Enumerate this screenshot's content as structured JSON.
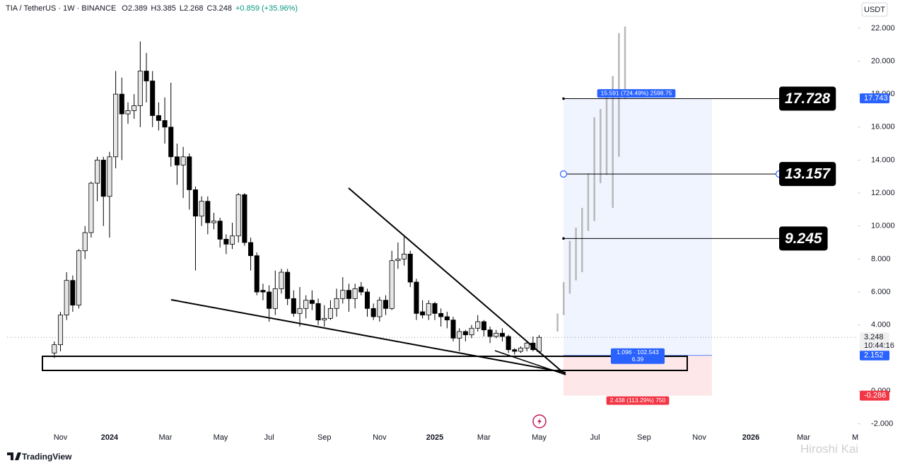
{
  "chart_data": {
    "type": "candlestick",
    "header": [
      "TIA / TetherUS · 1W · BINANCE",
      "O2.389",
      "H3.385",
      "L2.268",
      "C3.248",
      "+0.859 (+35.96%)"
    ],
    "currency": "USDT",
    "open": [
      2.3,
      2.8,
      4.6,
      6.7,
      5.2,
      8.5,
      9.6,
      12.6,
      14.0,
      11.8,
      14.2,
      18.0,
      16.8,
      17.0,
      17.3,
      19.4,
      18.8,
      16.7,
      16.4,
      16.0,
      14.2,
      13.7,
      14.2,
      12.2,
      10.6,
      11.5,
      10.2,
      10.3,
      9.2,
      8.9,
      9.4,
      11.9,
      9.0,
      8.2,
      6.1,
      6.0,
      5.0,
      6.2,
      7.2,
      5.6,
      4.7,
      5.0,
      5.5,
      5.3,
      4.3,
      4.4,
      5.0,
      5.6,
      6.1,
      5.6,
      6.3,
      6.0,
      5.0,
      4.5,
      5.5,
      5.0,
      7.9,
      8.0,
      8.3,
      6.6,
      4.8,
      4.6,
      5.3,
      4.7,
      4.5,
      4.3,
      3.2,
      3.6,
      3.4,
      3.8,
      4.2,
      3.7,
      3.3,
      3.5,
      3.3,
      2.5,
      2.4,
      2.6,
      2.9,
      2.389
    ],
    "high": [
      3.0,
      4.8,
      7.2,
      7.0,
      8.6,
      10.0,
      12.7,
      14.2,
      14.2,
      14.5,
      19.4,
      19.0,
      17.5,
      18.0,
      21.2,
      20.5,
      19.4,
      17.5,
      17.8,
      18.7,
      15.0,
      14.8,
      14.4,
      12.4,
      11.8,
      11.8,
      10.8,
      10.5,
      9.5,
      10.2,
      12.0,
      12.0,
      9.3,
      8.4,
      6.5,
      6.4,
      7.3,
      7.4,
      7.4,
      6.1,
      6.3,
      5.8,
      6.1,
      5.6,
      5.2,
      5.5,
      6.2,
      6.9,
      6.5,
      6.5,
      6.6,
      6.2,
      5.3,
      5.7,
      5.8,
      8.5,
      9.0,
      9.4,
      8.5,
      6.8,
      5.5,
      5.5,
      5.4,
      5.0,
      4.8,
      4.5,
      3.8,
      3.7,
      4.0,
      4.6,
      4.3,
      3.9,
      3.7,
      3.8,
      3.4,
      2.6,
      2.7,
      3.0,
      3.3,
      3.385
    ],
    "low": [
      2.0,
      2.4,
      4.3,
      4.8,
      5.0,
      8.0,
      9.3,
      11.5,
      10.0,
      9.3,
      13.5,
      14.0,
      16.2,
      16.5,
      16.0,
      17.5,
      16.0,
      15.8,
      15.0,
      13.6,
      12.5,
      11.7,
      11.0,
      7.3,
      10.0,
      9.5,
      9.8,
      8.7,
      8.3,
      8.6,
      9.0,
      8.8,
      7.3,
      5.8,
      5.5,
      4.2,
      4.6,
      5.9,
      5.2,
      4.5,
      3.9,
      4.4,
      4.9,
      4.0,
      3.9,
      4.3,
      4.5,
      5.3,
      4.8,
      5.0,
      5.8,
      4.5,
      4.3,
      4.2,
      4.6,
      4.9,
      7.4,
      7.6,
      6.3,
      4.3,
      4.4,
      4.3,
      4.3,
      3.9,
      3.8,
      3.0,
      2.4,
      3.0,
      3.2,
      3.6,
      3.3,
      2.9,
      3.2,
      3.0,
      2.3,
      2.2,
      2.3,
      2.4,
      2.4,
      2.268
    ],
    "close": [
      2.8,
      4.6,
      6.7,
      5.2,
      8.5,
      9.6,
      12.6,
      14.0,
      11.8,
      14.2,
      18.0,
      16.8,
      17.0,
      17.3,
      19.4,
      18.8,
      16.7,
      16.4,
      16.0,
      14.2,
      13.7,
      14.2,
      12.2,
      10.6,
      11.5,
      10.2,
      10.3,
      9.2,
      8.9,
      9.4,
      11.9,
      9.0,
      8.2,
      6.0,
      6.0,
      5.0,
      6.2,
      7.2,
      5.6,
      4.7,
      5.0,
      5.5,
      5.3,
      4.3,
      4.4,
      5.0,
      5.6,
      6.1,
      5.6,
      6.2,
      6.0,
      5.0,
      4.5,
      5.5,
      5.0,
      7.9,
      8.0,
      8.3,
      6.6,
      4.7,
      4.6,
      5.3,
      4.7,
      4.5,
      4.3,
      3.2,
      3.6,
      3.4,
      3.8,
      4.2,
      3.7,
      3.3,
      3.5,
      3.3,
      2.5,
      2.4,
      2.6,
      2.9,
      2.5,
      3.248
    ],
    "up_color": "#e6e6e6",
    "down_color": "#000000",
    "projection": {
      "low": [
        3.6,
        4.6,
        5.9,
        6.7,
        7.2,
        9.7,
        10.3,
        12.6,
        13.1,
        11.1,
        14.2,
        17.7
      ],
      "high": [
        4.7,
        6.6,
        9.1,
        9.9,
        11.1,
        13.2,
        16.6,
        17.1,
        18.1,
        19.1,
        21.7,
        22.1
      ],
      "color": "#b8b8b8"
    },
    "levels": [
      17.728,
      13.157,
      9.245
    ],
    "position": {
      "target": 17.743,
      "entry": 2.152,
      "stop": -0.286,
      "target_label": "15.591 (724.49%) 2598.75",
      "entry_label": "1.096 · 102.543",
      "qty_label": "6.39",
      "stop_label": "2.438 (113.29%) 750"
    },
    "current_price": 3.248,
    "countdown": "10:44:16",
    "ylim": [
      -2.79,
      23.71
    ],
    "yticks": [
      {
        "value": 22,
        "label": "22.000"
      },
      {
        "value": 20,
        "label": "20.000"
      },
      {
        "value": 18,
        "label": "18.000"
      },
      {
        "value": 16,
        "label": "16.000"
      },
      {
        "value": 14,
        "label": "14.000"
      },
      {
        "value": 12,
        "label": "12.000"
      },
      {
        "value": 10,
        "label": "10.000"
      },
      {
        "value": 8,
        "label": "8.000"
      },
      {
        "value": 6,
        "label": "6.000"
      },
      {
        "value": 4,
        "label": "4.000"
      },
      {
        "value": 0,
        "label": "0.000"
      },
      {
        "value": -2,
        "label": "-2.000"
      }
    ],
    "xlim": [
      -7.7,
      130.9
    ],
    "xticks": [
      {
        "value": 1,
        "label": "Nov"
      },
      {
        "value": 9,
        "label": "2024"
      },
      {
        "value": 18.1,
        "label": "Mar"
      },
      {
        "value": 27.1,
        "label": "May"
      },
      {
        "value": 35,
        "label": "Jul"
      },
      {
        "value": 44,
        "label": "Sep"
      },
      {
        "value": 53,
        "label": "Nov"
      },
      {
        "value": 62,
        "label": "2025"
      },
      {
        "value": 70,
        "label": "Mar"
      },
      {
        "value": 79,
        "label": "May"
      },
      {
        "value": 88.1,
        "label": "Jul"
      },
      {
        "value": 96.1,
        "label": "Sep"
      },
      {
        "value": 105.1,
        "label": "Nov"
      },
      {
        "value": 113.5,
        "label": "2026"
      },
      {
        "value": 122.1,
        "label": "Mar"
      },
      {
        "value": 130.5,
        "label": "M"
      }
    ],
    "footer": "TradingView",
    "watermark": "Hiroshi Kai"
  }
}
